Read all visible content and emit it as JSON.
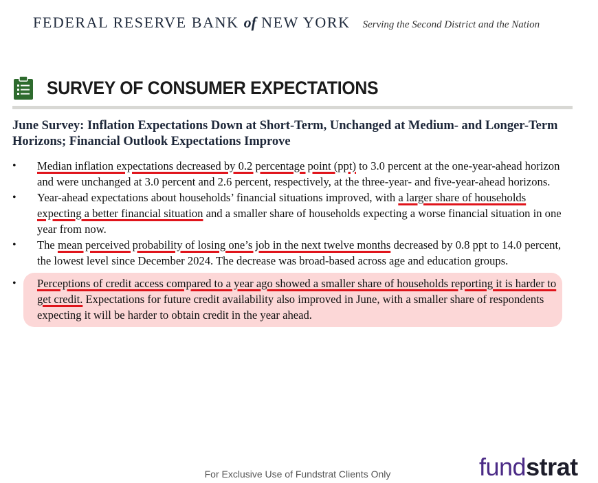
{
  "header": {
    "bank_name_part1": "FEDERAL RESERVE BANK",
    "bank_name_of": "of",
    "bank_name_part2": "NEW YORK",
    "tagline": "Serving the Second District and the Nation"
  },
  "survey": {
    "title": "SURVEY OF CONSUMER EXPECTATIONS",
    "icon": "clipboard-icon",
    "icon_color": "#2e6b2e"
  },
  "headline": "June Survey: Inflation Expectations Down at Short-Term, Unchanged at Medium- and Longer-Term Horizons; Financial Outlook Expectations Improve",
  "bullets": [
    {
      "underlined": "Median inflation expectations decreased by 0.2 percentage point (ppt)",
      "rest": " to 3.0 percent at the one-year-ahead horizon and were unchanged at 3.0 percent and 2.6 percent, respectively, at the three-year- and five-year-ahead horizons."
    },
    {
      "before": "Year-ahead expectations about households’ financial situations improved, with ",
      "underlined": "a larger share of households expecting a better financial situation",
      "rest": " and a smaller share of households expecting a worse financial situation in one year from now."
    },
    {
      "before": "The ",
      "underlined": "mean perceived probability of losing one’s job in the next twelve months",
      "rest": " decreased by 0.8 ppt to 14.0 percent, the lowest level since December 2024. The decrease was broad-based across age and education groups."
    },
    {
      "underlined": "Perceptions of credit access compared to a year ago showed a smaller share of households reporting it is harder to get credit.",
      "rest": " Expectations for future credit availability also improved in June, with a smaller share of respondents expecting it will be harder to obtain credit in the year ahead."
    }
  ],
  "colors": {
    "underline": "#e0141b",
    "highlight_box": "#fcd7d7"
  },
  "footer": {
    "disclaimer": "For Exclusive Use of Fundstrat Clients Only",
    "logo_part1": "fund",
    "logo_part2": "strat"
  }
}
